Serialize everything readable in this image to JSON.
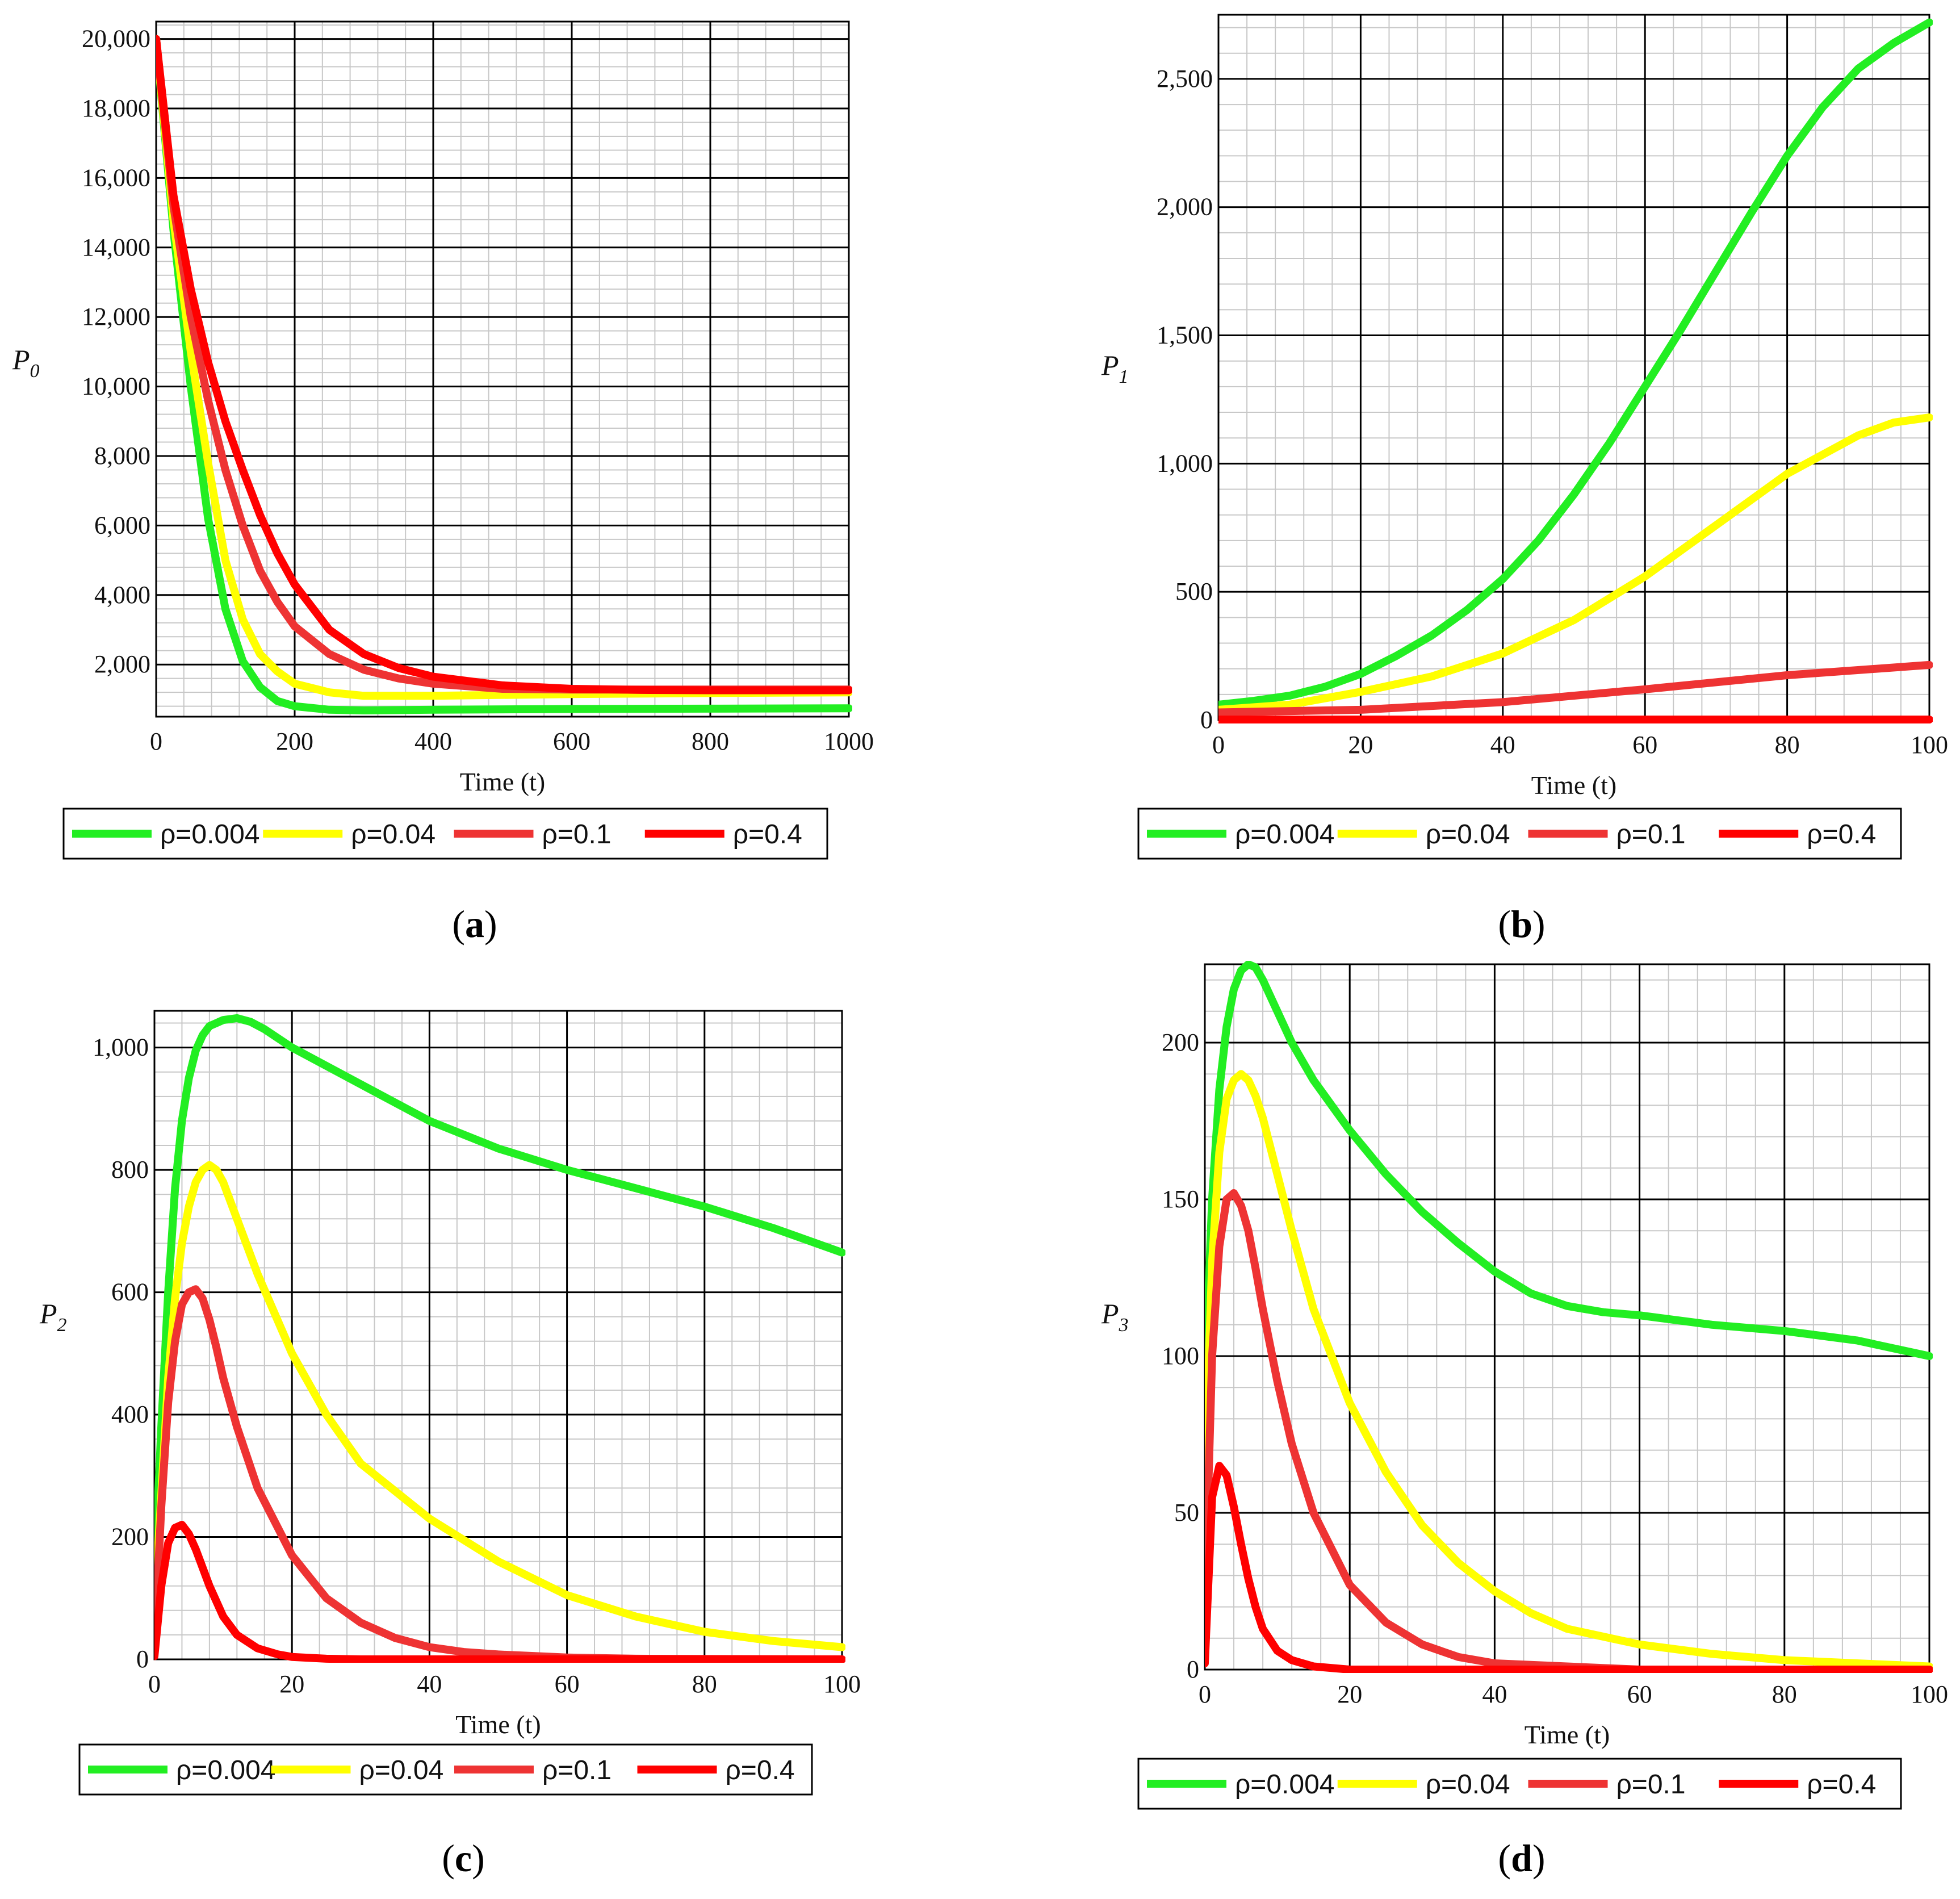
{
  "chart_data": [
    {
      "id": "a",
      "type": "line",
      "caption_open": "(",
      "caption_letter": "a",
      "caption_close": ")",
      "ylabel": "P",
      "ylabel_sub": "0",
      "xlabel": "Time (t)",
      "xlim": [
        0,
        1000
      ],
      "ylim": [
        500,
        20500
      ],
      "xticks": [
        0,
        200,
        400,
        600,
        800,
        1000
      ],
      "xtick_labels": [
        "0",
        "200",
        "400",
        "600",
        "800",
        "1000"
      ],
      "yticks": [
        2000,
        4000,
        6000,
        8000,
        10000,
        12000,
        14000,
        16000,
        18000,
        20000
      ],
      "ytick_labels": [
        "2,000",
        "4,000",
        "6,000",
        "8,000",
        "10,000",
        "12,000",
        "14,000",
        "16,000",
        "18,000",
        "20,000"
      ],
      "series": [
        {
          "name": "ρ=0.004",
          "color": "#22ee22",
          "x": [
            0,
            25,
            50,
            75,
            100,
            125,
            150,
            175,
            200,
            250,
            300,
            400,
            600,
            800,
            1000
          ],
          "y": [
            20000,
            14500,
            10000,
            6200,
            3600,
            2100,
            1350,
            950,
            800,
            700,
            680,
            700,
            720,
            730,
            740
          ]
        },
        {
          "name": "ρ=0.04",
          "color": "#ffff00",
          "x": [
            0,
            25,
            50,
            75,
            100,
            125,
            150,
            175,
            200,
            250,
            300,
            400,
            600,
            800,
            1000
          ],
          "y": [
            20000,
            14800,
            11000,
            7800,
            5000,
            3300,
            2300,
            1800,
            1450,
            1200,
            1100,
            1100,
            1150,
            1180,
            1200
          ]
        },
        {
          "name": "ρ=0.1",
          "color": "#ee3333",
          "x": [
            0,
            25,
            50,
            75,
            100,
            125,
            150,
            175,
            200,
            250,
            300,
            350,
            400,
            500,
            600,
            800,
            1000
          ],
          "y": [
            20000,
            15200,
            12000,
            9600,
            7600,
            6000,
            4700,
            3800,
            3100,
            2300,
            1850,
            1600,
            1450,
            1300,
            1280,
            1280,
            1280
          ]
        },
        {
          "name": "ρ=0.4",
          "color": "#ff0000",
          "x": [
            0,
            25,
            50,
            75,
            100,
            125,
            150,
            175,
            200,
            250,
            300,
            350,
            400,
            500,
            600,
            700,
            800,
            1000
          ],
          "y": [
            20000,
            15500,
            12800,
            10700,
            9000,
            7600,
            6300,
            5200,
            4300,
            3000,
            2300,
            1900,
            1650,
            1400,
            1300,
            1270,
            1260,
            1260
          ]
        }
      ]
    },
    {
      "id": "b",
      "type": "line",
      "caption_open": "(",
      "caption_letter": "b",
      "caption_close": ")",
      "ylabel": "P",
      "ylabel_sub": "1",
      "xlabel": "Time (t)",
      "xlim": [
        0,
        100
      ],
      "ylim": [
        0,
        2750
      ],
      "xticks": [
        0,
        20,
        40,
        60,
        80,
        100
      ],
      "xtick_labels": [
        "0",
        "20",
        "40",
        "60",
        "80",
        "100"
      ],
      "yticks": [
        0,
        500,
        1000,
        1500,
        2000,
        2500
      ],
      "ytick_labels": [
        "0",
        "500",
        "1,000",
        "1,500",
        "2,000",
        "2,500"
      ],
      "series": [
        {
          "name": "ρ=0.004",
          "color": "#22ee22",
          "x": [
            0,
            5,
            10,
            15,
            20,
            25,
            30,
            35,
            40,
            45,
            50,
            55,
            60,
            65,
            70,
            75,
            80,
            85,
            90,
            95,
            100
          ],
          "y": [
            60,
            75,
            95,
            130,
            180,
            250,
            330,
            430,
            550,
            700,
            880,
            1080,
            1300,
            1520,
            1750,
            1980,
            2200,
            2390,
            2540,
            2640,
            2720
          ]
        },
        {
          "name": "ρ=0.04",
          "color": "#ffff00",
          "x": [
            0,
            10,
            20,
            30,
            40,
            50,
            60,
            70,
            80,
            90,
            95,
            100
          ],
          "y": [
            40,
            60,
            110,
            170,
            260,
            390,
            560,
            760,
            960,
            1110,
            1160,
            1180
          ]
        },
        {
          "name": "ρ=0.1",
          "color": "#ee3333",
          "x": [
            0,
            20,
            40,
            60,
            80,
            100
          ],
          "y": [
            30,
            40,
            70,
            120,
            175,
            215
          ]
        },
        {
          "name": "ρ=0.4",
          "color": "#ff0000",
          "x": [
            0,
            50,
            100
          ],
          "y": [
            2,
            2,
            2
          ]
        }
      ]
    },
    {
      "id": "c",
      "type": "line",
      "caption_open": "(",
      "caption_letter": "c",
      "caption_close": ")",
      "ylabel": "P",
      "ylabel_sub": "2",
      "xlabel": "Time (t)",
      "xlim": [
        0,
        100
      ],
      "ylim": [
        0,
        1060
      ],
      "xticks": [
        0,
        20,
        40,
        60,
        80,
        100
      ],
      "xtick_labels": [
        "0",
        "20",
        "40",
        "60",
        "80",
        "100"
      ],
      "yticks": [
        0,
        200,
        400,
        600,
        800,
        1000
      ],
      "ytick_labels": [
        "0",
        "200",
        "400",
        "600",
        "800",
        "1,000"
      ],
      "series": [
        {
          "name": "ρ=0.004",
          "color": "#22ee22",
          "x": [
            0,
            1,
            2,
            3,
            4,
            5,
            6,
            7,
            8,
            10,
            12,
            14,
            16,
            20,
            30,
            40,
            50,
            60,
            70,
            80,
            90,
            100
          ],
          "y": [
            130,
            380,
            600,
            770,
            880,
            950,
            995,
            1020,
            1035,
            1045,
            1048,
            1042,
            1030,
            1000,
            940,
            880,
            835,
            800,
            770,
            740,
            705,
            665
          ]
        },
        {
          "name": "ρ=0.04",
          "color": "#ffff00",
          "x": [
            0,
            1,
            2,
            3,
            4,
            5,
            6,
            7,
            8,
            9,
            10,
            12,
            15,
            20,
            25,
            30,
            40,
            50,
            60,
            70,
            80,
            90,
            100
          ],
          "y": [
            80,
            270,
            460,
            590,
            680,
            740,
            780,
            800,
            808,
            800,
            780,
            720,
            630,
            500,
            400,
            320,
            230,
            160,
            105,
            70,
            45,
            30,
            20
          ]
        },
        {
          "name": "ρ=0.1",
          "color": "#ee3333",
          "x": [
            0,
            1,
            2,
            3,
            4,
            5,
            6,
            7,
            8,
            9,
            10,
            12,
            15,
            20,
            25,
            30,
            35,
            40,
            45,
            50,
            60,
            70,
            100
          ],
          "y": [
            20,
            250,
            420,
            520,
            580,
            600,
            605,
            590,
            555,
            510,
            460,
            380,
            280,
            170,
            100,
            60,
            35,
            20,
            12,
            8,
            3,
            1,
            0
          ]
        },
        {
          "name": "ρ=0.4",
          "color": "#ff0000",
          "x": [
            0,
            1,
            2,
            3,
            4,
            5,
            6,
            8,
            10,
            12,
            15,
            18,
            20,
            25,
            30,
            40,
            60,
            100
          ],
          "y": [
            5,
            120,
            190,
            215,
            220,
            205,
            180,
            120,
            70,
            40,
            18,
            8,
            4,
            1,
            0,
            0,
            0,
            0
          ]
        }
      ]
    },
    {
      "id": "d",
      "type": "line",
      "caption_open": "(",
      "caption_letter": "d",
      "caption_close": ")",
      "ylabel": "P",
      "ylabel_sub": "3",
      "xlabel": "Time (t)",
      "xlim": [
        0,
        100
      ],
      "ylim": [
        0,
        225
      ],
      "xticks": [
        0,
        20,
        40,
        60,
        80,
        100
      ],
      "xtick_labels": [
        "0",
        "20",
        "40",
        "60",
        "80",
        "100"
      ],
      "yticks": [
        0,
        50,
        100,
        150,
        200
      ],
      "ytick_labels": [
        "0",
        "50",
        "100",
        "150",
        "200"
      ],
      "series": [
        {
          "name": "ρ=0.004",
          "color": "#22ee22",
          "x": [
            0,
            1,
            2,
            3,
            4,
            5,
            6,
            7,
            8,
            10,
            12,
            15,
            20,
            25,
            30,
            35,
            40,
            45,
            50,
            55,
            60,
            70,
            80,
            90,
            100
          ],
          "y": [
            90,
            150,
            185,
            205,
            217,
            223,
            225,
            224,
            220,
            210,
            200,
            188,
            172,
            158,
            146,
            136,
            127,
            120,
            116,
            114,
            113,
            110,
            108,
            105,
            100
          ]
        },
        {
          "name": "ρ=0.04",
          "color": "#ffff00",
          "x": [
            0,
            1,
            2,
            3,
            4,
            5,
            6,
            7,
            8,
            10,
            12,
            15,
            20,
            25,
            30,
            35,
            40,
            45,
            50,
            60,
            70,
            80,
            90,
            100
          ],
          "y": [
            60,
            130,
            165,
            182,
            188,
            190,
            188,
            183,
            176,
            158,
            140,
            115,
            85,
            63,
            46,
            34,
            25,
            18,
            13,
            8,
            5,
            3,
            2,
            1
          ]
        },
        {
          "name": "ρ=0.1",
          "color": "#ee3333",
          "x": [
            0,
            1,
            2,
            3,
            4,
            5,
            6,
            7,
            8,
            10,
            12,
            15,
            20,
            25,
            30,
            35,
            40,
            50,
            60,
            100
          ],
          "y": [
            20,
            100,
            135,
            150,
            152,
            148,
            140,
            128,
            115,
            92,
            72,
            50,
            27,
            15,
            8,
            4,
            2,
            1,
            0,
            0
          ]
        },
        {
          "name": "ρ=0.4",
          "color": "#ff0000",
          "x": [
            0,
            1,
            2,
            3,
            4,
            5,
            6,
            7,
            8,
            10,
            12,
            15,
            20,
            30,
            50,
            100
          ],
          "y": [
            2,
            55,
            65,
            62,
            52,
            40,
            29,
            20,
            13,
            6,
            3,
            1,
            0,
            0,
            0,
            0
          ]
        }
      ]
    }
  ]
}
